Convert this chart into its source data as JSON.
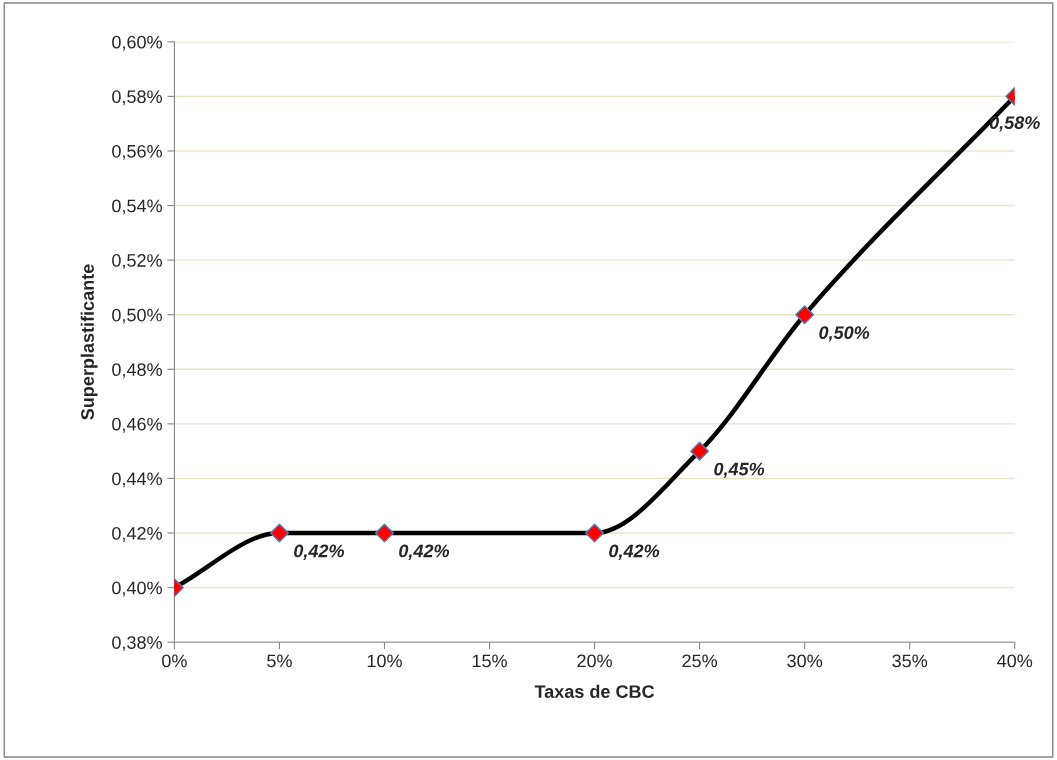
{
  "chart_data": {
    "type": "line",
    "xlabel": "Taxas de CBC",
    "ylabel": "Superplastificante",
    "x": [
      0,
      5,
      10,
      20,
      25,
      30,
      40
    ],
    "series": [
      {
        "color": "#000000",
        "colors": [
          "#ff0000",
          "#ff0000",
          "#ff0000",
          "#ff0000",
          "#ff0000",
          "#ff0000",
          "#ff0000"
        ],
        "values": [
          0.4,
          0.42,
          0.42,
          0.42,
          0.45,
          0.5,
          0.58
        ],
        "value_labels": [
          null,
          "0,42%",
          "0,42%",
          "0,42%",
          "0,45%",
          "0,50%",
          "0,58%"
        ]
      }
    ],
    "marker": "diamond",
    "xlim": [
      0,
      40
    ],
    "xticks": [
      {
        "value": 0,
        "label": "0%"
      },
      {
        "value": 5,
        "label": "5%"
      },
      {
        "value": 10,
        "label": "10%"
      },
      {
        "value": 15,
        "label": "15%"
      },
      {
        "value": 20,
        "label": "20%"
      },
      {
        "value": 25,
        "label": "25%"
      },
      {
        "value": 30,
        "label": "30%"
      },
      {
        "value": 35,
        "label": "35%"
      },
      {
        "value": 40,
        "label": "40%"
      }
    ],
    "ylim": [
      0.38,
      0.6
    ],
    "yticks": [
      {
        "value": 0.38,
        "label": "0,38%"
      },
      {
        "value": 0.4,
        "label": "0,40%"
      },
      {
        "value": 0.42,
        "label": "0,42%"
      },
      {
        "value": 0.44,
        "label": "0,44%"
      },
      {
        "value": 0.46,
        "label": "0,46%"
      },
      {
        "value": 0.48,
        "label": "0,48%"
      },
      {
        "value": 0.5,
        "label": "0,50%"
      },
      {
        "value": 0.52,
        "label": "0,52%"
      },
      {
        "value": 0.54,
        "label": "0,54%"
      },
      {
        "value": 0.56,
        "label": "0,56%"
      },
      {
        "value": 0.58,
        "label": "0,58%"
      },
      {
        "value": 0.6,
        "label": "0,60%"
      }
    ],
    "grid": "y",
    "line_style": "solid",
    "legend": false
  }
}
